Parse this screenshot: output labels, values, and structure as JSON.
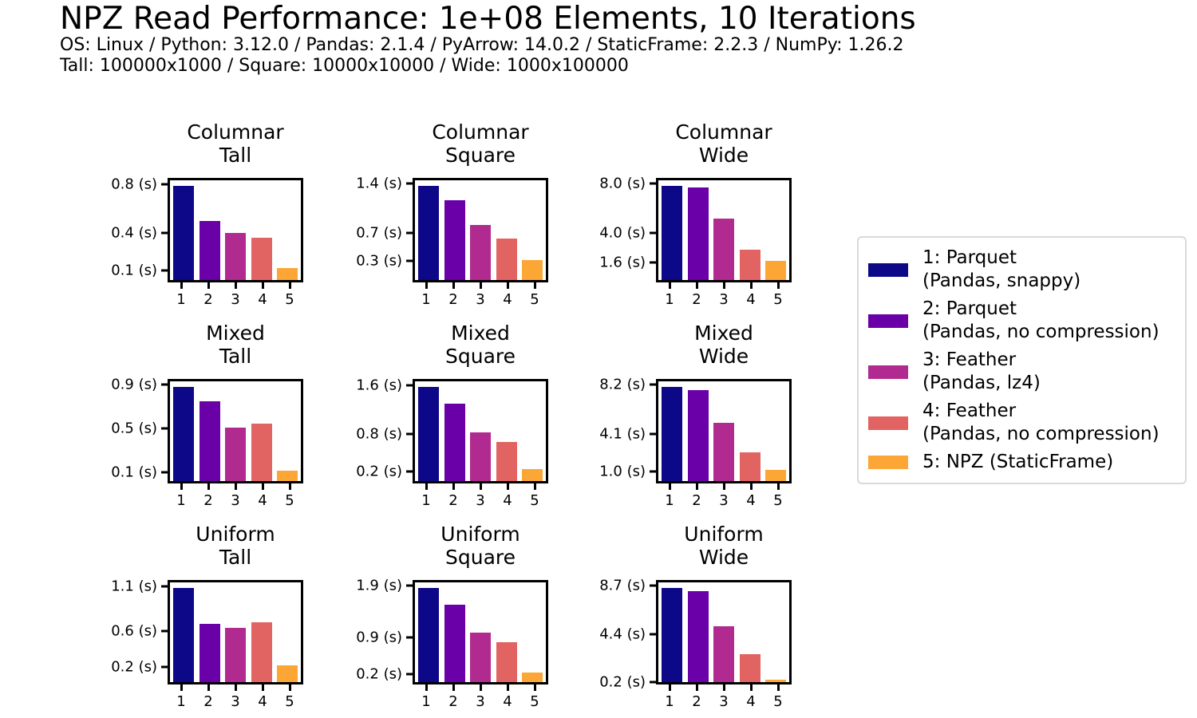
{
  "header": {
    "title": "NPZ Read Performance: 1e+08 Elements, 10 Iterations",
    "subtitle_line1": "OS: Linux / Python: 3.12.0 / Pandas: 2.1.4 / PyArrow: 14.0.2 / StaticFrame: 2.2.3 / NumPy: 1.26.2",
    "subtitle_line2": "Tall: 100000x1000 / Square: 10000x10000 / Wide: 1000x100000"
  },
  "palette": [
    "#0d0887",
    "#6a00a8",
    "#b12a90",
    "#e16462",
    "#fca636"
  ],
  "legend": {
    "entries": [
      {
        "label": "1: Parquet\n(Pandas, snappy)",
        "color": "#0d0887"
      },
      {
        "label": "2: Parquet\n(Pandas, no compression)",
        "color": "#6a00a8"
      },
      {
        "label": "3: Feather\n(Pandas, lz4)",
        "color": "#b12a90"
      },
      {
        "label": "4: Feather\n(Pandas, no compression)",
        "color": "#e16462"
      },
      {
        "label": "5: NPZ (StaticFrame)",
        "color": "#fca636"
      }
    ]
  },
  "chart_data": [
    {
      "type": "bar",
      "title": "Columnar\nTall",
      "categories": [
        "1",
        "2",
        "3",
        "4",
        "5"
      ],
      "values": [
        0.8,
        0.5,
        0.4,
        0.36,
        0.1
      ],
      "yticks": [
        {
          "value": 0.8,
          "label": "0.8 (s)"
        },
        {
          "value": 0.4,
          "label": "0.4 (s)"
        },
        {
          "value": 0.1,
          "label": "0.1 (s)"
        }
      ],
      "ylim": [
        0,
        0.85
      ],
      "grid": false,
      "ylabel": "seconds"
    },
    {
      "type": "bar",
      "title": "Columnar\nSquare",
      "categories": [
        "1",
        "2",
        "3",
        "4",
        "5"
      ],
      "values": [
        1.4,
        1.18,
        0.82,
        0.61,
        0.3
      ],
      "yticks": [
        {
          "value": 1.4,
          "label": "1.4 (s)"
        },
        {
          "value": 0.7,
          "label": "0.7 (s)"
        },
        {
          "value": 0.3,
          "label": "0.3 (s)"
        }
      ],
      "ylim": [
        0,
        1.48
      ],
      "grid": false,
      "ylabel": "seconds"
    },
    {
      "type": "bar",
      "title": "Columnar\nWide",
      "categories": [
        "1",
        "2",
        "3",
        "4",
        "5"
      ],
      "values": [
        8.0,
        7.9,
        5.2,
        2.6,
        1.6
      ],
      "yticks": [
        {
          "value": 8.0,
          "label": "8.0 (s)"
        },
        {
          "value": 4.0,
          "label": "4.0 (s)"
        },
        {
          "value": 1.6,
          "label": "1.6 (s)"
        }
      ],
      "ylim": [
        0,
        8.48
      ],
      "grid": false,
      "ylabel": "seconds"
    },
    {
      "type": "bar",
      "title": "Mixed\nTall",
      "categories": [
        "1",
        "2",
        "3",
        "4",
        "5"
      ],
      "values": [
        0.9,
        0.76,
        0.51,
        0.55,
        0.1
      ],
      "yticks": [
        {
          "value": 0.9,
          "label": "0.9 (s)"
        },
        {
          "value": 0.5,
          "label": "0.5 (s)"
        },
        {
          "value": 0.1,
          "label": "0.1 (s)"
        }
      ],
      "ylim": [
        0,
        0.95
      ],
      "grid": false,
      "ylabel": "seconds"
    },
    {
      "type": "bar",
      "title": "Mixed\nSquare",
      "categories": [
        "1",
        "2",
        "3",
        "4",
        "5"
      ],
      "values": [
        1.6,
        1.32,
        0.83,
        0.67,
        0.2
      ],
      "yticks": [
        {
          "value": 1.6,
          "label": "1.6 (s)"
        },
        {
          "value": 0.8,
          "label": "0.8 (s)"
        },
        {
          "value": 0.2,
          "label": "0.2 (s)"
        }
      ],
      "ylim": [
        0,
        1.7
      ],
      "grid": false,
      "ylabel": "seconds"
    },
    {
      "type": "bar",
      "title": "Mixed\nWide",
      "categories": [
        "1",
        "2",
        "3",
        "4",
        "5"
      ],
      "values": [
        8.2,
        7.9,
        5.1,
        2.5,
        1.0
      ],
      "yticks": [
        {
          "value": 8.2,
          "label": "8.2 (s)"
        },
        {
          "value": 4.1,
          "label": "4.1 (s)"
        },
        {
          "value": 1.0,
          "label": "1.0 (s)"
        }
      ],
      "ylim": [
        0,
        8.69
      ],
      "grid": false,
      "ylabel": "seconds"
    },
    {
      "type": "bar",
      "title": "Uniform\nTall",
      "categories": [
        "1",
        "2",
        "3",
        "4",
        "5"
      ],
      "values": [
        1.1,
        0.68,
        0.64,
        0.7,
        0.2
      ],
      "yticks": [
        {
          "value": 1.1,
          "label": "1.1 (s)"
        },
        {
          "value": 0.6,
          "label": "0.6 (s)"
        },
        {
          "value": 0.2,
          "label": "0.2 (s)"
        }
      ],
      "ylim": [
        0,
        1.17
      ],
      "grid": false,
      "ylabel": "seconds"
    },
    {
      "type": "bar",
      "title": "Uniform\nSquare",
      "categories": [
        "1",
        "2",
        "3",
        "4",
        "5"
      ],
      "values": [
        1.9,
        1.56,
        1.0,
        0.81,
        0.2
      ],
      "yticks": [
        {
          "value": 1.9,
          "label": "1.9 (s)"
        },
        {
          "value": 0.9,
          "label": "0.9 (s)"
        },
        {
          "value": 0.2,
          "label": "0.2 (s)"
        }
      ],
      "ylim": [
        0,
        2.01
      ],
      "grid": false,
      "ylabel": "seconds"
    },
    {
      "type": "bar",
      "title": "Uniform\nWide",
      "categories": [
        "1",
        "2",
        "3",
        "4",
        "5"
      ],
      "values": [
        8.7,
        8.4,
        5.2,
        2.6,
        0.2
      ],
      "yticks": [
        {
          "value": 8.7,
          "label": "8.7 (s)"
        },
        {
          "value": 4.4,
          "label": "4.4 (s)"
        },
        {
          "value": 0.2,
          "label": "0.2 (s)"
        }
      ],
      "ylim": [
        0,
        9.22
      ],
      "grid": false,
      "ylabel": "seconds"
    }
  ]
}
